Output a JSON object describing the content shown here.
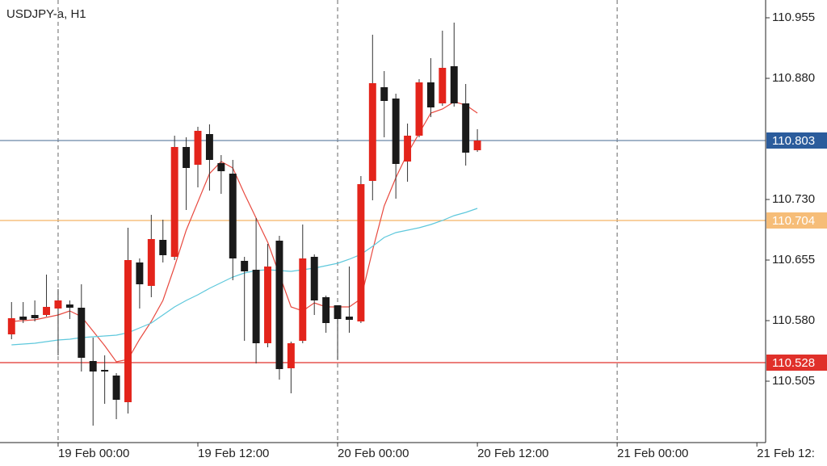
{
  "chart_data": {
    "type": "candlestick",
    "title": "USDJPY-a, H1",
    "x": [
      -4,
      -3,
      -2,
      -1,
      0,
      1,
      2,
      3,
      4,
      5,
      6,
      7,
      8,
      9,
      10,
      11,
      12,
      13,
      14,
      15,
      16,
      17,
      18,
      19,
      20,
      21,
      22,
      23,
      24,
      25,
      26,
      27,
      28,
      29,
      30,
      31,
      32,
      33,
      34,
      35,
      36
    ],
    "open": [
      110.563,
      110.585,
      110.587,
      110.587,
      110.595,
      110.6,
      110.596,
      110.53,
      110.519,
      110.512,
      110.479,
      110.652,
      110.623,
      110.68,
      110.659,
      110.795,
      110.773,
      110.811,
      110.775,
      110.762,
      110.654,
      110.643,
      110.552,
      110.679,
      110.521,
      110.555,
      110.659,
      110.609,
      110.599,
      110.585,
      110.579,
      110.753,
      110.869,
      110.855,
      110.777,
      110.809,
      110.875,
      110.849,
      110.895,
      110.849,
      110.791
    ],
    "high": [
      110.603,
      110.603,
      110.605,
      110.637,
      110.619,
      110.605,
      110.625,
      110.559,
      110.537,
      110.515,
      110.695,
      110.657,
      110.711,
      110.705,
      110.809,
      110.807,
      110.82,
      110.823,
      110.785,
      110.779,
      110.659,
      110.707,
      110.675,
      110.685,
      110.554,
      110.699,
      110.662,
      110.611,
      110.599,
      110.647,
      110.759,
      110.934,
      110.889,
      110.861,
      110.824,
      110.879,
      110.905,
      110.939,
      110.949,
      110.873,
      110.817
    ],
    "low": [
      110.557,
      110.577,
      110.579,
      110.585,
      110.537,
      110.582,
      110.517,
      110.45,
      110.477,
      110.458,
      110.465,
      110.595,
      110.609,
      110.652,
      110.655,
      110.717,
      110.745,
      110.741,
      110.737,
      110.63,
      110.555,
      110.527,
      110.547,
      110.507,
      110.49,
      110.552,
      110.587,
      110.565,
      110.532,
      110.565,
      110.577,
      110.729,
      110.807,
      110.731,
      110.752,
      110.807,
      110.832,
      110.846,
      110.845,
      110.772,
      110.789
    ],
    "close": [
      110.583,
      110.581,
      110.583,
      110.597,
      110.605,
      110.596,
      110.534,
      110.517,
      110.517,
      110.482,
      110.655,
      110.625,
      110.681,
      110.661,
      110.795,
      110.769,
      110.815,
      110.779,
      110.765,
      110.657,
      110.641,
      110.552,
      110.647,
      110.52,
      110.552,
      110.657,
      110.605,
      110.577,
      110.582,
      110.581,
      110.749,
      110.874,
      110.852,
      110.774,
      110.809,
      110.875,
      110.844,
      110.893,
      110.849,
      110.788,
      110.803
    ],
    "up_color": "#e3241b",
    "down_color": "#1a1a1a",
    "overlays": [
      {
        "color": "#e84a40",
        "values": [
          110.579,
          110.58,
          110.581,
          110.584,
          110.587,
          110.592,
          110.585,
          110.567,
          110.549,
          110.529,
          110.532,
          110.557,
          110.579,
          110.605,
          110.647,
          110.692,
          110.727,
          110.762,
          110.777,
          110.769,
          110.737,
          110.707,
          110.677,
          110.637,
          110.597,
          110.592,
          110.602,
          110.597,
          110.597,
          110.597,
          110.607,
          110.667,
          110.722,
          110.757,
          110.787,
          110.812,
          110.837,
          110.842,
          110.851,
          110.847,
          110.837
        ]
      },
      {
        "color": "#5ec8dc",
        "values": [
          110.55,
          110.551,
          110.552,
          110.554,
          110.556,
          110.557,
          110.559,
          110.56,
          110.561,
          110.562,
          110.565,
          110.571,
          110.577,
          110.587,
          110.597,
          110.605,
          110.612,
          110.62,
          110.627,
          110.634,
          110.639,
          110.642,
          110.643,
          110.642,
          110.641,
          110.643,
          110.645,
          110.648,
          110.651,
          110.656,
          110.662,
          110.672,
          110.683,
          110.689,
          110.692,
          110.695,
          110.699,
          110.704,
          110.71,
          110.714,
          110.719
        ]
      }
    ],
    "levels": [
      {
        "value": 110.803,
        "color": "#6a86a8",
        "label_color": "#2b5c9c"
      },
      {
        "value": 110.704,
        "color": "#f5b466",
        "label_color": "#f6bd78"
      },
      {
        "value": 110.528,
        "color": "#e0302a",
        "label_color": "#e0302a"
      }
    ],
    "xlim": [
      -4.99,
      60.75
    ],
    "ylim": [
      110.429,
      110.977
    ],
    "xticks": [
      {
        "value": 0,
        "label": "19 Feb 00:00"
      },
      {
        "value": 12,
        "label": "19 Feb 12:00"
      },
      {
        "value": 24,
        "label": "20 Feb 00:00"
      },
      {
        "value": 36,
        "label": "20 Feb 12:00"
      },
      {
        "value": 48,
        "label": "21 Feb 00:00"
      },
      {
        "value": 60,
        "label": "21 Feb 12:"
      }
    ],
    "xgrid": [
      0,
      24,
      48
    ],
    "yticks": [
      110.955,
      {
        "value": 110.88,
        "label": "110.880"
      },
      {
        "value": 110.73,
        "label": "110.730"
      },
      110.655,
      {
        "value": 110.58,
        "label": "110.580"
      },
      110.505
    ]
  }
}
